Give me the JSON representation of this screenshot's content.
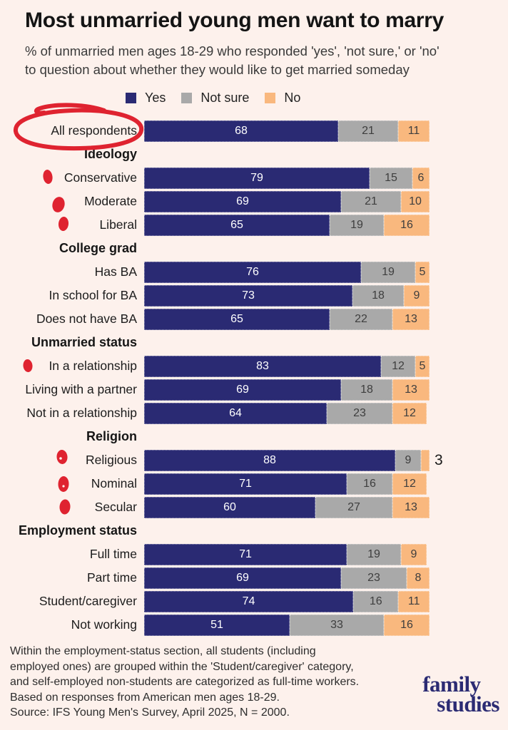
{
  "title": "Most unmarried young men want to marry",
  "subtitle_lines": [
    "% of unmarried men ages 18-29 who responded 'yes', 'not sure,' or 'no'",
    "to question about whether they would like to get married someday"
  ],
  "colors": {
    "background": "#fdf1ec",
    "yes": "#2a2a73",
    "not_sure": "#a9a9a9",
    "no": "#f9b87e",
    "annotation_red": "#df2330",
    "logo_navy": "#2b2b73"
  },
  "legend": [
    {
      "label": "Yes",
      "color": "#2a2a73"
    },
    {
      "label": "Not sure",
      "color": "#a9a9a9"
    },
    {
      "label": "No",
      "color": "#f9b87e"
    }
  ],
  "chart_data": {
    "type": "bar",
    "stacked": true,
    "orientation": "horizontal",
    "series_names": [
      "Yes",
      "Not sure",
      "No"
    ],
    "xlim": [
      0,
      100
    ],
    "grid": false,
    "legend_position": "top",
    "rows": [
      {
        "kind": "bar",
        "label": "All respondents",
        "values": [
          68,
          21,
          11
        ],
        "annotation": "red-circle"
      },
      {
        "kind": "header",
        "label": "Ideology"
      },
      {
        "kind": "bar",
        "label": "Conservative",
        "values": [
          79,
          15,
          6
        ],
        "annotation": "red-dot"
      },
      {
        "kind": "bar",
        "label": "Moderate",
        "values": [
          69,
          21,
          10
        ],
        "annotation": "red-dot"
      },
      {
        "kind": "bar",
        "label": "Liberal",
        "values": [
          65,
          19,
          16
        ],
        "annotation": "red-dot"
      },
      {
        "kind": "header",
        "label": "College grad"
      },
      {
        "kind": "bar",
        "label": "Has BA",
        "values": [
          76,
          19,
          5
        ]
      },
      {
        "kind": "bar",
        "label": "In school for BA",
        "values": [
          73,
          18,
          9
        ]
      },
      {
        "kind": "bar",
        "label": "Does not have BA",
        "values": [
          65,
          22,
          13
        ]
      },
      {
        "kind": "header",
        "label": "Unmarried status"
      },
      {
        "kind": "bar",
        "label": "In a relationship",
        "values": [
          83,
          12,
          5
        ],
        "annotation": "red-dot"
      },
      {
        "kind": "bar",
        "label": "Living with a partner",
        "values": [
          69,
          18,
          13
        ]
      },
      {
        "kind": "bar",
        "label": "Not in a relationship",
        "values": [
          64,
          23,
          12
        ]
      },
      {
        "kind": "header",
        "label": "Religion"
      },
      {
        "kind": "bar",
        "label": "Religious",
        "values": [
          88,
          9,
          3
        ],
        "annotation": "red-dot",
        "last_label_outside": true
      },
      {
        "kind": "bar",
        "label": "Nominal",
        "values": [
          71,
          16,
          12
        ],
        "annotation": "red-dot"
      },
      {
        "kind": "bar",
        "label": "Secular",
        "values": [
          60,
          27,
          13
        ],
        "annotation": "red-dot"
      },
      {
        "kind": "header",
        "label": "Employment status"
      },
      {
        "kind": "bar",
        "label": "Full time",
        "values": [
          71,
          19,
          9
        ]
      },
      {
        "kind": "bar",
        "label": "Part time",
        "values": [
          69,
          23,
          8
        ]
      },
      {
        "kind": "bar",
        "label": "Student/caregiver",
        "values": [
          74,
          16,
          11
        ]
      },
      {
        "kind": "bar",
        "label": "Not working",
        "values": [
          51,
          33,
          16
        ]
      }
    ]
  },
  "footnote_lines": [
    "Within the employment-status section, all students (including",
    "employed ones) are grouped within the 'Student/caregiver' category,",
    "and self-employed non-students are categorized as full-time workers.",
    "Based on responses from American men ages 18-29.",
    "Source: IFS Young Men's Survey, April 2025, N = 2000."
  ],
  "logo": {
    "line1": "family",
    "line2": "studies"
  }
}
